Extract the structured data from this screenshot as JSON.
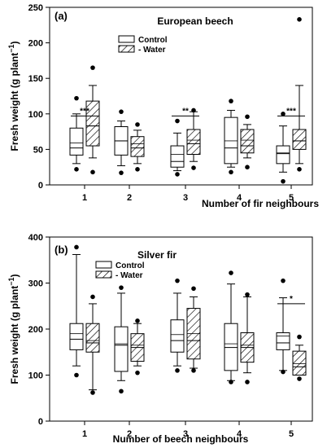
{
  "chart_data": [
    {
      "type": "box",
      "panel_label": "(a)",
      "title": "European beech",
      "ylabel": "Fresh weight (g plant",
      "ylabel_sup": "−1",
      "ylabel_tail": ")",
      "xlabel": "Number of fir neighbours",
      "ylim": [
        0,
        250
      ],
      "yticks": [
        0,
        50,
        100,
        150,
        200,
        250
      ],
      "categories": [
        "1",
        "2",
        "3",
        "4",
        "5"
      ],
      "legend": [
        {
          "name": "Control",
          "pattern": "open"
        },
        {
          "name": "- Water",
          "pattern": "hatched"
        }
      ],
      "series": [
        {
          "name": "Control",
          "boxes": [
            {
              "whisker_low": 30,
              "q1": 42,
              "median": 52,
              "mean": 59,
              "q3": 80,
              "whisker_high": 100,
              "outliers": [
                22,
                122
              ]
            },
            {
              "whisker_low": 27,
              "q1": 42,
              "median": 62,
              "mean": 62,
              "q3": 82,
              "whisker_high": 90,
              "outliers": [
                17,
                103
              ]
            },
            {
              "whisker_low": 20,
              "q1": 25,
              "median": 33,
              "mean": 43,
              "q3": 55,
              "whisker_high": 73,
              "outliers": [
                15,
                90
              ]
            },
            {
              "whisker_low": 25,
              "q1": 30,
              "median": 52,
              "mean": 62,
              "q3": 95,
              "whisker_high": 105,
              "outliers": [
                18,
                118
              ]
            },
            {
              "whisker_low": 18,
              "q1": 30,
              "median": 44,
              "mean": 45,
              "q3": 55,
              "whisker_high": 83,
              "outliers": [
                5,
                100
              ]
            }
          ]
        },
        {
          "name": "- Water",
          "boxes": [
            {
              "whisker_low": 38,
              "q1": 55,
              "median": 83,
              "mean": 83,
              "q3": 118,
              "whisker_high": 140,
              "outliers": [
                18,
                165
              ]
            },
            {
              "whisker_low": 30,
              "q1": 40,
              "median": 52,
              "mean": 58,
              "q3": 68,
              "whisker_high": 77,
              "outliers": [
                22,
                85
              ]
            },
            {
              "whisker_low": 33,
              "q1": 43,
              "median": 58,
              "mean": 63,
              "q3": 78,
              "whisker_high": 103,
              "outliers": [
                24,
                105
              ]
            },
            {
              "whisker_low": 38,
              "q1": 45,
              "median": 55,
              "mean": 63,
              "q3": 78,
              "whisker_high": 85,
              "outliers": [
                25,
                96
              ]
            },
            {
              "whisker_low": 30,
              "q1": 50,
              "median": 62,
              "mean": 62,
              "q3": 78,
              "whisker_high": 140,
              "outliers": [
                22,
                233
              ]
            }
          ]
        }
      ],
      "annotations": [
        {
          "category": "1",
          "text": "***",
          "y": 97
        },
        {
          "category": "3",
          "text": "**",
          "y": 97
        },
        {
          "category": "5",
          "text": "***",
          "y": 97
        }
      ]
    },
    {
      "type": "box",
      "panel_label": "(b)",
      "title": "Silver fir",
      "ylabel": "Fresh weight (g plant",
      "ylabel_sup": "−1",
      "ylabel_tail": ")",
      "xlabel": "Number of beech neighbours",
      "ylim": [
        0,
        400
      ],
      "yticks": [
        0,
        100,
        200,
        300,
        400
      ],
      "categories": [
        "1",
        "2",
        "3",
        "4",
        "5"
      ],
      "legend": [
        {
          "name": "Control",
          "pattern": "open"
        },
        {
          "name": "- Water",
          "pattern": "hatched"
        }
      ],
      "series": [
        {
          "name": "Control",
          "boxes": [
            {
              "whisker_low": 120,
              "q1": 155,
              "median": 178,
              "mean": 190,
              "q3": 212,
              "whisker_high": 362,
              "outliers": [
                100,
                378
              ]
            },
            {
              "whisker_low": 88,
              "q1": 108,
              "median": 165,
              "mean": 168,
              "q3": 205,
              "whisker_high": 278,
              "outliers": [
                65,
                290
              ]
            },
            {
              "whisker_low": 120,
              "q1": 150,
              "median": 175,
              "mean": 188,
              "q3": 220,
              "whisker_high": 278,
              "outliers": [
                110,
                305
              ]
            },
            {
              "whisker_low": 88,
              "q1": 110,
              "median": 160,
              "mean": 168,
              "q3": 212,
              "whisker_high": 298,
              "outliers": [
                85,
                322
              ]
            },
            {
              "whisker_low": 110,
              "q1": 155,
              "median": 170,
              "mean": 185,
              "q3": 192,
              "whisker_high": 268,
              "outliers": [
                107,
                305
              ]
            }
          ]
        },
        {
          "name": "- Water",
          "boxes": [
            {
              "whisker_low": 68,
              "q1": 150,
              "median": 170,
              "mean": 175,
              "q3": 212,
              "whisker_high": 255,
              "outliers": [
                62,
                270
              ]
            },
            {
              "whisker_low": 120,
              "q1": 130,
              "median": 160,
              "mean": 165,
              "q3": 190,
              "whisker_high": 212,
              "outliers": [
                105,
                218
              ]
            },
            {
              "whisker_low": 115,
              "q1": 135,
              "median": 175,
              "mean": 190,
              "q3": 245,
              "whisker_high": 270,
              "outliers": [
                110,
                288
              ]
            },
            {
              "whisker_low": 105,
              "q1": 128,
              "median": 160,
              "mean": 165,
              "q3": 192,
              "whisker_high": 270,
              "outliers": [
                85,
                275
              ]
            },
            {
              "whisker_low": 100,
              "q1": 100,
              "median": 118,
              "mean": 125,
              "q3": 152,
              "whisker_high": 165,
              "outliers": [
                92,
                183
              ]
            }
          ]
        }
      ],
      "annotations": [
        {
          "category": "5",
          "text": "*",
          "y": 255
        }
      ]
    }
  ]
}
